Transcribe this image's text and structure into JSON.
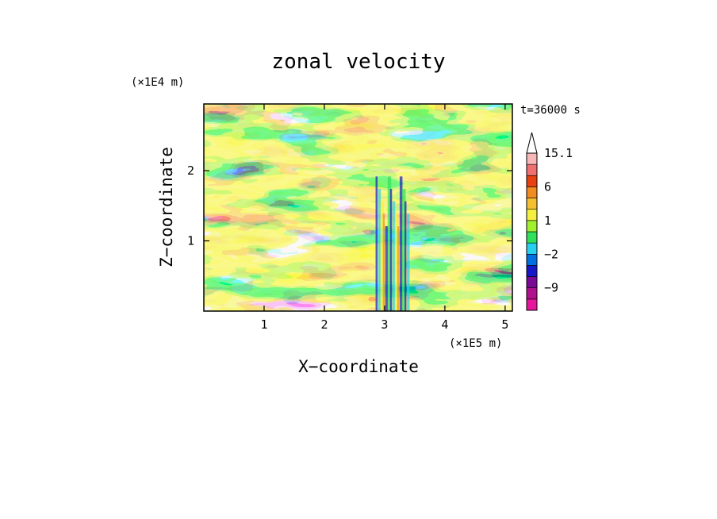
{
  "chart_data": {
    "type": "heatmap",
    "title": "zonal velocity",
    "xlabel": "X−coordinate",
    "ylabel": "Z−coordinate",
    "x_unit": "(×1E5 m)",
    "y_unit": "(×1E4 m)",
    "time_label": "t=36000 s",
    "xlim": [
      0,
      5.12
    ],
    "ylim": [
      0,
      2.95
    ],
    "x_ticks": [
      1,
      2,
      3,
      4,
      5
    ],
    "y_ticks": [
      1,
      2
    ],
    "colorbar": {
      "levels": [
        -15,
        -12,
        -9,
        -6,
        -3,
        -2,
        -1,
        0,
        1,
        2,
        3,
        6,
        9,
        12,
        15.1
      ],
      "labels": [
        "15.1",
        "6",
        "1",
        "−2",
        "−9"
      ],
      "label_values": [
        15.1,
        6,
        1,
        -2,
        -9
      ],
      "colors": [
        "#e6169c",
        "#b0128f",
        "#7a0a96",
        "#1818c8",
        "#0070e0",
        "#28d0f0",
        "#30e05a",
        "#a0f030",
        "#f5f040",
        "#f5c030",
        "#f08c20",
        "#e84010",
        "#ee7070",
        "#f8b8b8"
      ],
      "extend": "max"
    }
  }
}
